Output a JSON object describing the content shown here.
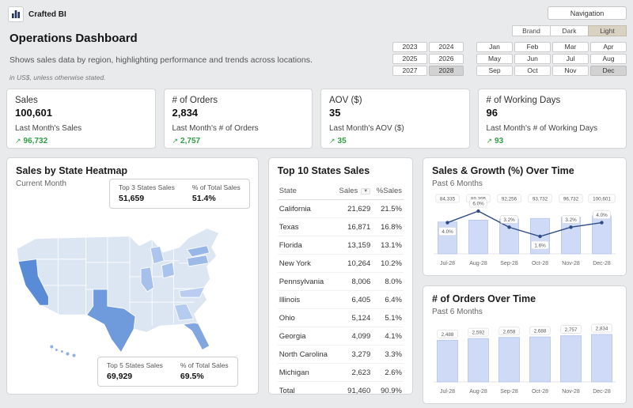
{
  "brand": {
    "logo_text": "Crafted BI"
  },
  "topbar": {
    "navigation_label": "Navigation",
    "theme_buttons": [
      "Brand",
      "Dark",
      "Light"
    ],
    "active_theme": "Light"
  },
  "header": {
    "title": "Operations Dashboard",
    "subtitle": "Shows sales data by region, highlighting performance and trends across locations.",
    "note": "in US$, unless otherwise stated."
  },
  "filters": {
    "years": [
      "2023",
      "2024",
      "2025",
      "2026",
      "2027",
      "2028"
    ],
    "selected_year": "2028",
    "months": [
      "Jan",
      "Feb",
      "Mar",
      "Apr",
      "May",
      "Jun",
      "Jul",
      "Aug",
      "Sep",
      "Oct",
      "Nov",
      "Dec"
    ],
    "selected_month": "Dec"
  },
  "icons": {
    "trend_up": "↗",
    "sort_desc": "▼"
  },
  "kpis": [
    {
      "title": "Sales",
      "value": "100,601",
      "subtitle": "Last Month's Sales",
      "trend": "96,732"
    },
    {
      "title": "# of Orders",
      "value": "2,834",
      "subtitle": "Last Month's # of Orders",
      "trend": "2,757"
    },
    {
      "title": "AOV ($)",
      "value": "35",
      "subtitle": "Last Month's AOV ($)",
      "trend": "35"
    },
    {
      "title": "# of Working Days",
      "value": "96",
      "subtitle": "Last Month's # of Working Days",
      "trend": "93"
    }
  ],
  "heatmap": {
    "title": "Sales by State Heatmap",
    "subtitle": "Current Month",
    "top_stats": {
      "label1": "Top 3 States Sales",
      "value1": "51,659",
      "label2": "% of Total Sales",
      "value2": "51.4%"
    },
    "bottom_stats": {
      "label1": "Top 5 States Sales",
      "value1": "69,929",
      "label2": "% of Total Sales",
      "value2": "69.5%"
    }
  },
  "table": {
    "title": "Top 10 States Sales",
    "columns": [
      "State",
      "Sales",
      "%Sales"
    ],
    "rows": [
      [
        "California",
        "21,629",
        "21.5%"
      ],
      [
        "Texas",
        "16,871",
        "16.8%"
      ],
      [
        "Florida",
        "13,159",
        "13.1%"
      ],
      [
        "New York",
        "10,264",
        "10.2%"
      ],
      [
        "Pennsylvania",
        "8,006",
        "8.0%"
      ],
      [
        "Illinois",
        "6,405",
        "6.4%"
      ],
      [
        "Ohio",
        "5,124",
        "5.1%"
      ],
      [
        "Georgia",
        "4,099",
        "4.1%"
      ],
      [
        "North Carolina",
        "3,279",
        "3.3%"
      ],
      [
        "Michigan",
        "2,623",
        "2.6%"
      ]
    ],
    "total_row": [
      "Total",
      "91,460",
      "90.9%"
    ]
  },
  "chart_data": [
    {
      "type": "bar+line",
      "title": "Sales & Growth (%) Over Time",
      "subtitle": "Past 6 Months",
      "categories": [
        "Jul-28",
        "Aug-28",
        "Sep-28",
        "Oct-28",
        "Nov-28",
        "Dec-28"
      ],
      "series": [
        {
          "name": "Sales",
          "type": "bar",
          "values": [
            84335,
            89395,
            92256,
            93732,
            96732,
            100601
          ],
          "labels": [
            "84,335",
            "89,395",
            "92,256",
            "93,732",
            "96,732",
            "100,601"
          ]
        },
        {
          "name": "Growth %",
          "type": "line",
          "values": [
            4.0,
            6.0,
            3.2,
            1.6,
            3.2,
            4.0
          ],
          "labels": [
            "4.0%",
            "6.0%",
            "3.2%",
            "1.6%",
            "3.2%",
            "4.0%"
          ],
          "label_positions": [
            "below",
            "above",
            "above",
            "below",
            "above",
            "above"
          ]
        }
      ]
    },
    {
      "type": "bar",
      "title": "# of Orders Over Time",
      "subtitle": "Past 6 Months",
      "categories": [
        "Jul-28",
        "Aug-28",
        "Sep-28",
        "Oct-28",
        "Nov-28",
        "Dec-28"
      ],
      "values": [
        2488,
        2592,
        2658,
        2688,
        2757,
        2834
      ],
      "labels": [
        "2,488",
        "2,592",
        "2,658",
        "2,688",
        "2,757",
        "2,834"
      ]
    }
  ],
  "colors": {
    "positive": "#2f9e44",
    "bar_fill": "#cfdaf6",
    "line": "#2e4b85",
    "map_high": "#5a8bd7"
  }
}
